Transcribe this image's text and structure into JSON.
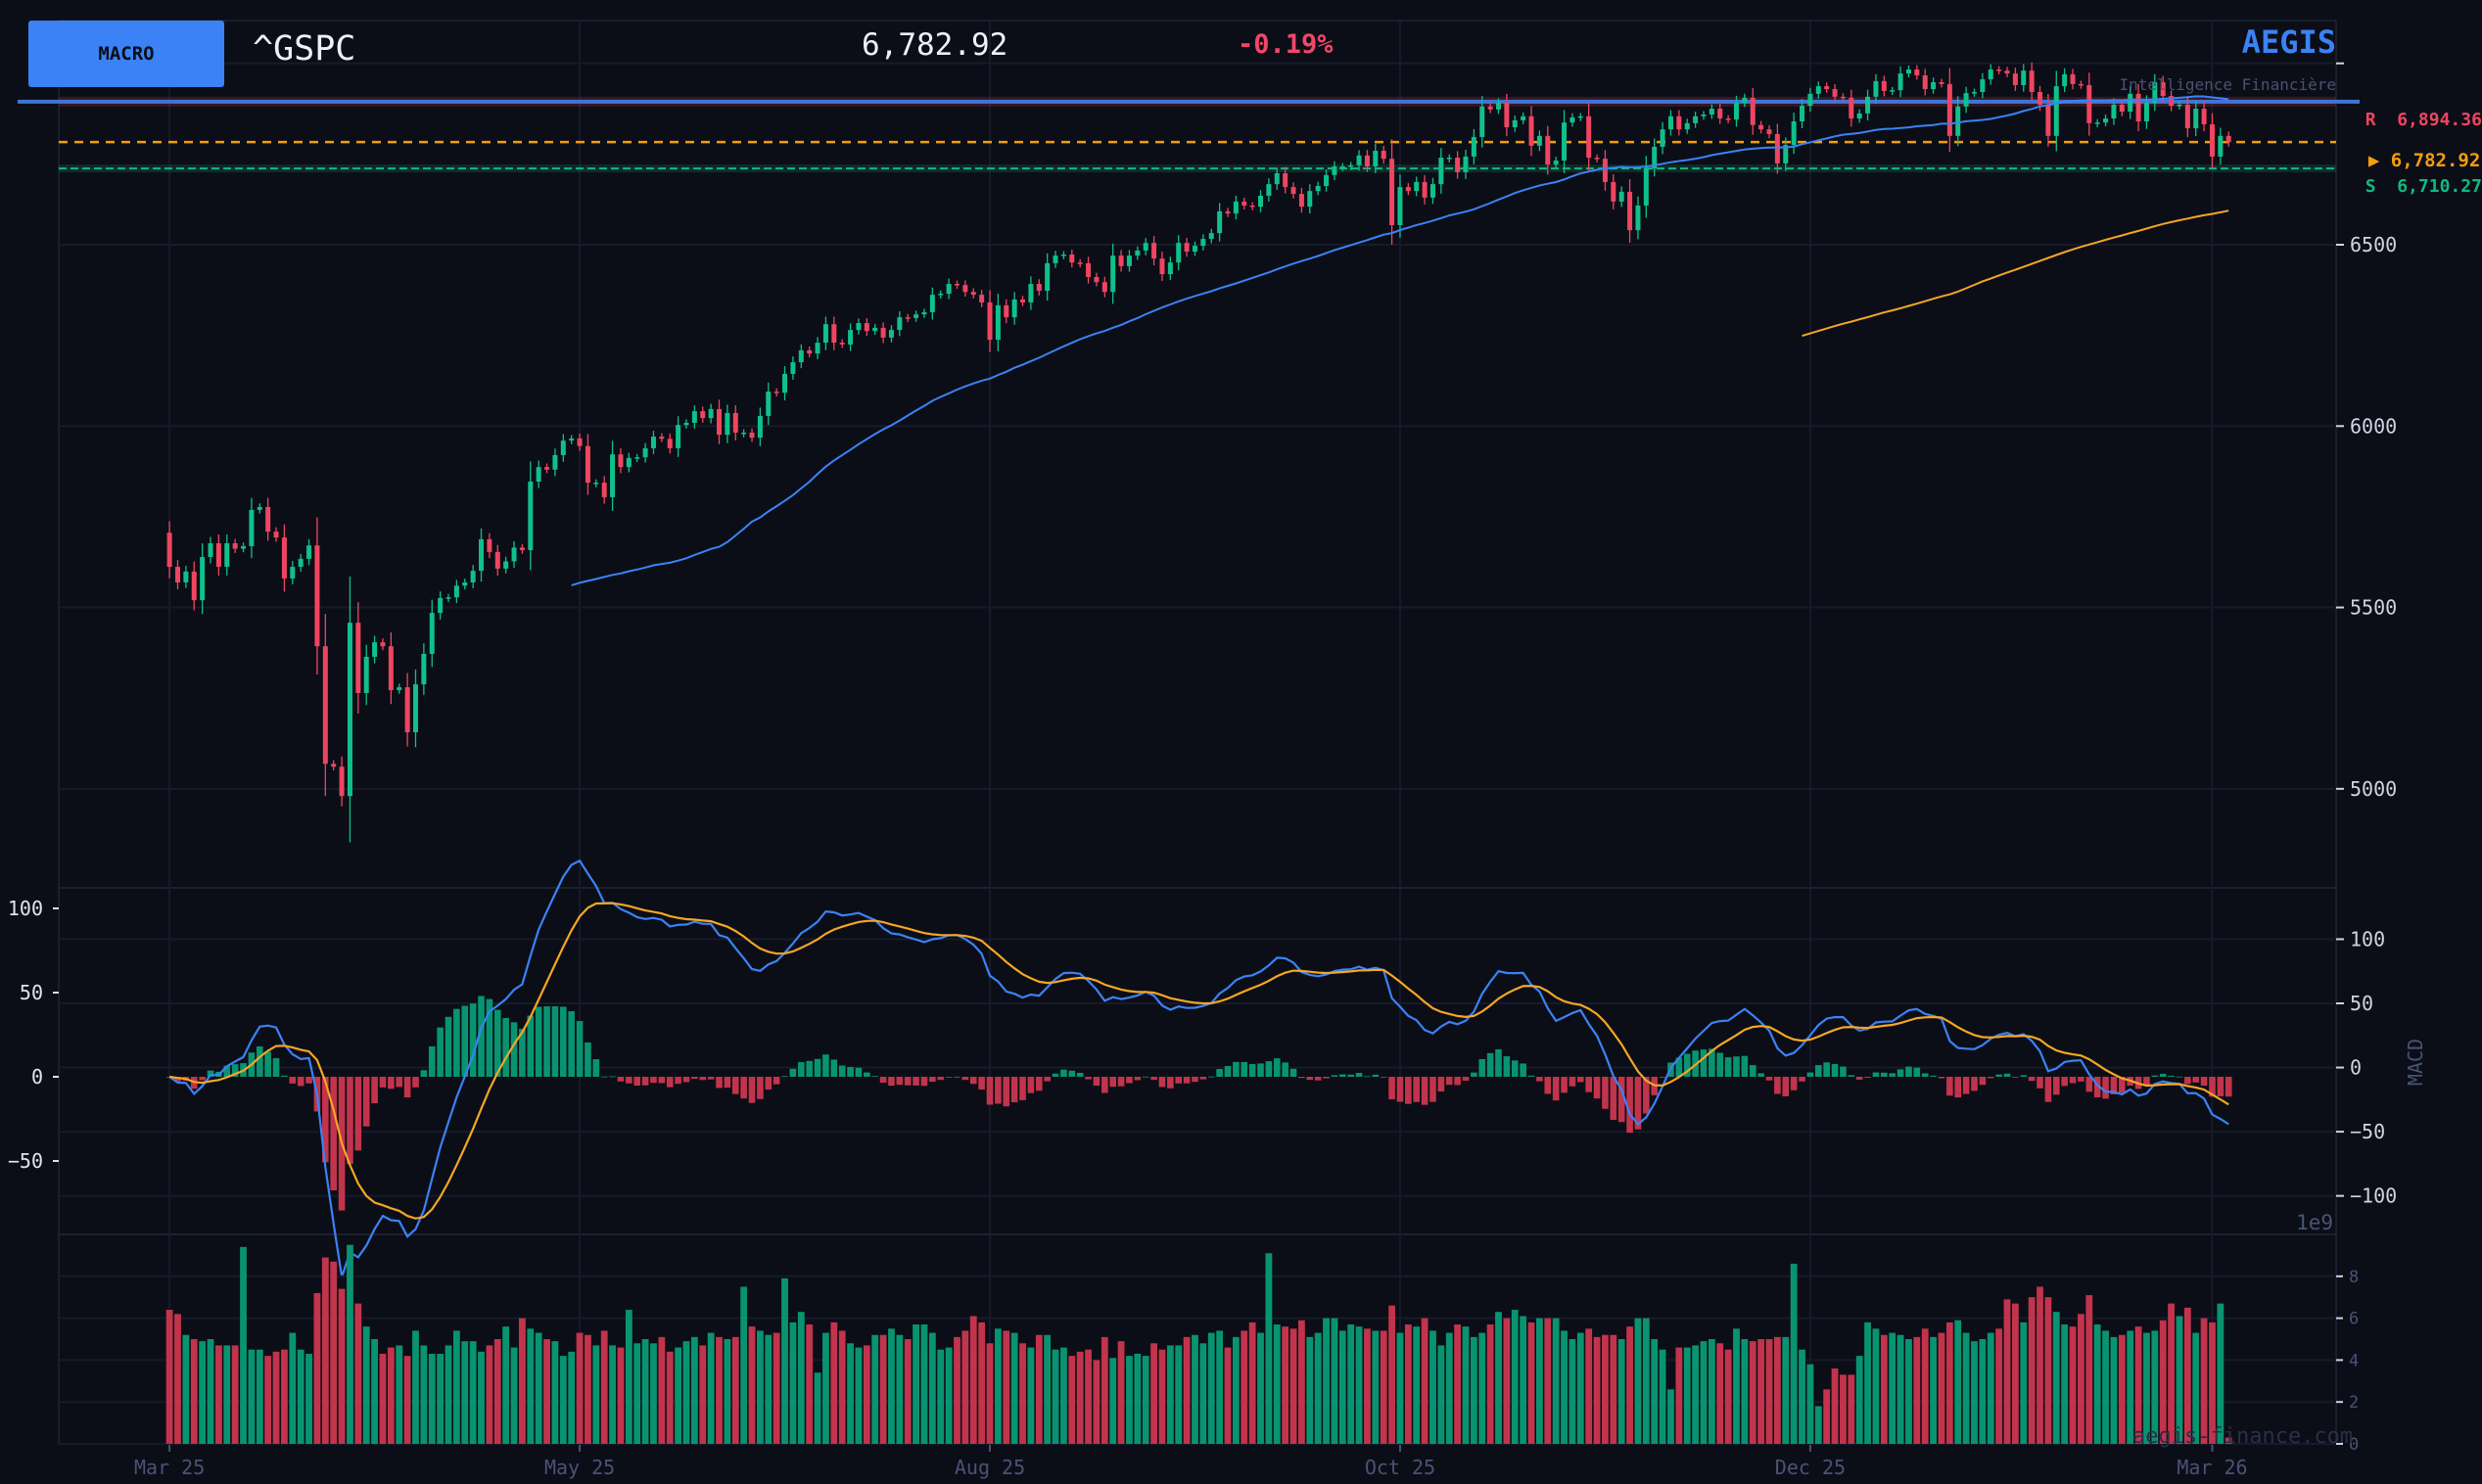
{
  "header": {
    "badge": "MACRO",
    "ticker": "^GSPC",
    "price": "6,782.92",
    "change": "-0.19%",
    "brand": "AEGIS",
    "tagline": "Intelligence Financière"
  },
  "levels": {
    "resistance": {
      "label": "R",
      "value_text": "6,894.36",
      "value": 6894.36
    },
    "current": {
      "marker": "▶",
      "value_text": "6,782.92",
      "value": 6782.92
    },
    "support": {
      "label": "S",
      "value_text": "6,710.27",
      "value": 6710.27
    }
  },
  "watermark": "aegis-finance.com",
  "colors": {
    "background": "#0b0e17",
    "up": "#10c08a",
    "down": "#ef4560",
    "volume_up": "#089470",
    "volume_down": "#c2344c",
    "accent": "#3b82f6",
    "signal": "#f5a623",
    "resistance": "#ef4560",
    "support": "#10b981",
    "current": "#f59e0b",
    "grid": "#171a2a"
  },
  "chart_data": {
    "type": "candlestick",
    "x_ticks": [
      {
        "bar": 0,
        "label": "Mar 25"
      },
      {
        "bar": 50,
        "label": "May 25"
      },
      {
        "bar": 100,
        "label": "Aug 25"
      },
      {
        "bar": 150,
        "label": "Oct 25"
      },
      {
        "bar": 200,
        "label": "Dec 25"
      },
      {
        "bar": 249,
        "label": "Mar 26"
      }
    ],
    "xlim": [
      -13.5,
      264.1
    ],
    "price": {
      "ylim": [
        4727,
        7118
      ],
      "yticks": [
        5000,
        5500,
        6000,
        6500,
        7000
      ],
      "ytick_labels": [
        "5000",
        "5500",
        "6000",
        "6500",
        ""
      ],
      "moving_average_periods": [
        50,
        200
      ],
      "close": [
        5612,
        5569,
        5599,
        5520,
        5639,
        5677,
        5612,
        5677,
        5662,
        5669,
        5769,
        5777,
        5709,
        5693,
        5580,
        5612,
        5634,
        5671,
        5393,
        5069,
        5061,
        4980,
        5458,
        5264,
        5364,
        5404,
        5393,
        5272,
        5280,
        5156,
        5288,
        5372,
        5485,
        5526,
        5528,
        5560,
        5569,
        5601,
        5688,
        5653,
        5607,
        5627,
        5665,
        5658,
        5847,
        5887,
        5880,
        5920,
        5960,
        5966,
        5945,
        5844,
        5844,
        5804,
        5922,
        5887,
        5912,
        5914,
        5939,
        5971,
        5965,
        5939,
        6003,
        6009,
        6041,
        6022,
        6047,
        5976,
        6036,
        5982,
        5982,
        5968,
        6028,
        6095,
        6092,
        6144,
        6176,
        6209,
        6200,
        6230,
        6281,
        6230,
        6225,
        6265,
        6284,
        6262,
        6271,
        6244,
        6265,
        6300,
        6298,
        6308,
        6314,
        6362,
        6365,
        6392,
        6389,
        6370,
        6362,
        6341,
        6238,
        6333,
        6300,
        6349,
        6341,
        6392,
        6373,
        6449,
        6470,
        6473,
        6451,
        6449,
        6411,
        6397,
        6370,
        6470,
        6441,
        6470,
        6484,
        6505,
        6462,
        6419,
        6451,
        6505,
        6481,
        6497,
        6516,
        6532,
        6592,
        6586,
        6619,
        6608,
        6605,
        6635,
        6667,
        6697,
        6659,
        6640,
        6605,
        6648,
        6662,
        6692,
        6716,
        6716,
        6719,
        6746,
        6716,
        6759,
        6737,
        6554,
        6659,
        6648,
        6673,
        6630,
        6667,
        6740,
        6740,
        6700,
        6743,
        6797,
        6881,
        6873,
        6891,
        6824,
        6843,
        6854,
        6773,
        6800,
        6721,
        6732,
        6837,
        6851,
        6854,
        6740,
        6737,
        6673,
        6619,
        6646,
        6540,
        6608,
        6711,
        6770,
        6818,
        6854,
        6818,
        6835,
        6854,
        6859,
        6875,
        6848,
        6845,
        6891,
        6905,
        6830,
        6818,
        6805,
        6724,
        6775,
        6840,
        6883,
        6916,
        6937,
        6929,
        6908,
        6905,
        6848,
        6862,
        6908,
        6951,
        6924,
        6926,
        6972,
        6983,
        6967,
        6929,
        6948,
        6943,
        6800,
        6881,
        6918,
        6921,
        6956,
        6983,
        6980,
        6972,
        6940,
        6980,
        6921,
        6886,
        6800,
        6937,
        6970,
        6943,
        6940,
        6835,
        6837,
        6848,
        6886,
        6867,
        6916,
        6840,
        6891,
        6948,
        6910,
        6883,
        6886,
        6821,
        6875,
        6832,
        6743,
        6800,
        6782.92
      ]
    },
    "macd": {
      "ylabel": "MACD",
      "params": [
        12,
        26,
        9
      ],
      "ylim_left": [
        -93.6,
        112.2
      ],
      "yticks_left": [
        -50,
        0,
        50,
        100
      ],
      "ytick_labels_left": [
        "−50",
        "0",
        "50",
        "100"
      ],
      "ylim_right": [
        -130,
        140
      ],
      "yticks_right": [
        -100,
        -50,
        0,
        50,
        100
      ],
      "ytick_labels_right": [
        "−100",
        "−50",
        "0",
        "50",
        "100"
      ]
    },
    "volume": {
      "unit_label": "1e9",
      "ylim": [
        0,
        10
      ],
      "yticks": [
        0,
        2,
        4,
        6,
        8
      ],
      "ytick_labels": [
        "0",
        "2",
        "4",
        "6",
        "8"
      ],
      "values": [
        6.4,
        6.2,
        5.2,
        5.0,
        4.9,
        5.0,
        4.7,
        4.7,
        4.7,
        9.4,
        4.5,
        4.5,
        4.2,
        4.4,
        4.5,
        5.3,
        4.5,
        4.3,
        7.2,
        8.9,
        8.7,
        7.4,
        9.5,
        6.7,
        5.6,
        5.0,
        4.3,
        4.6,
        4.7,
        4.2,
        5.4,
        4.7,
        4.3,
        4.3,
        4.7,
        5.4,
        4.9,
        4.9,
        4.4,
        4.7,
        5.0,
        5.6,
        4.6,
        6.0,
        5.5,
        5.3,
        5.0,
        4.9,
        4.2,
        4.4,
        5.3,
        5.2,
        4.7,
        5.4,
        4.7,
        4.6,
        6.4,
        4.8,
        5.0,
        4.8,
        5.1,
        4.4,
        4.6,
        4.9,
        5.1,
        4.7,
        5.3,
        5.1,
        5.0,
        5.1,
        7.5,
        5.6,
        5.4,
        5.2,
        5.3,
        7.9,
        5.8,
        6.3,
        5.7,
        3.4,
        5.3,
        5.8,
        5.4,
        4.8,
        4.6,
        4.7,
        5.2,
        5.2,
        5.5,
        5.2,
        5.0,
        5.7,
        5.7,
        5.3,
        4.5,
        4.6,
        5.1,
        5.4,
        6.1,
        5.8,
        4.8,
        5.5,
        5.4,
        5.3,
        4.8,
        4.6,
        5.2,
        5.2,
        4.5,
        4.6,
        4.2,
        4.4,
        4.5,
        4.0,
        5.1,
        4.1,
        4.9,
        4.2,
        4.3,
        4.2,
        4.8,
        4.5,
        4.7,
        4.7,
        5.1,
        5.2,
        4.8,
        5.3,
        5.4,
        4.6,
        5.1,
        5.4,
        5.8,
        5.3,
        9.1,
        5.7,
        5.6,
        5.5,
        5.9,
        5.1,
        5.3,
        6.0,
        6.0,
        5.4,
        5.7,
        5.6,
        5.5,
        5.4,
        5.4,
        6.6,
        5.3,
        5.7,
        5.6,
        6.0,
        5.4,
        4.7,
        5.3,
        5.7,
        5.6,
        5.1,
        5.3,
        5.7,
        6.3,
        6.0,
        6.4,
        6.1,
        5.8,
        6.0,
        6.0,
        6.0,
        5.4,
        5.0,
        5.3,
        5.5,
        5.1,
        5.2,
        5.2,
        5.0,
        5.6,
        6.0,
        6.0,
        5.0,
        4.5,
        2.6,
        4.6,
        4.6,
        4.7,
        4.9,
        5.0,
        4.8,
        4.5,
        5.5,
        5.0,
        4.9,
        5.0,
        5.0,
        5.1,
        5.1,
        8.6,
        4.5,
        3.8,
        1.8,
        2.6,
        3.6,
        3.3,
        3.3,
        4.2,
        5.8,
        5.5,
        5.2,
        5.3,
        5.2,
        5.0,
        5.1,
        5.5,
        5.1,
        5.3,
        5.8,
        5.9,
        5.3,
        4.9,
        5.0,
        5.3,
        5.5,
        6.9,
        6.7,
        5.8,
        7.0,
        7.5,
        7.0,
        6.3,
        5.7,
        5.6,
        6.2,
        7.1,
        5.7,
        5.4,
        5.1,
        5.2,
        5.4,
        5.6,
        5.3,
        5.4,
        5.9,
        6.7,
        6.1,
        6.5,
        5.3,
        6.0,
        5.8,
        6.7,
        0.3
      ]
    }
  }
}
